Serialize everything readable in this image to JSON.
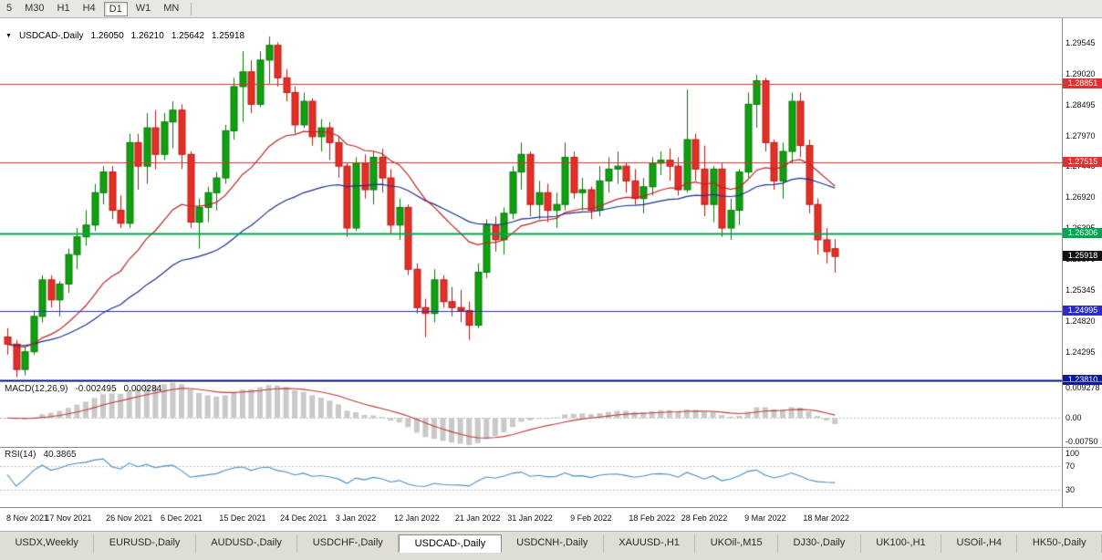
{
  "toolbar": {
    "timeframes": [
      {
        "label": "5",
        "active": false
      },
      {
        "label": "M30",
        "active": false
      },
      {
        "label": "H1",
        "active": false
      },
      {
        "label": "H4",
        "active": false
      },
      {
        "label": "D1",
        "active": true
      },
      {
        "label": "W1",
        "active": false
      },
      {
        "label": "MN",
        "active": false
      }
    ]
  },
  "chart_header": {
    "symbol": "USDCAD-,Daily",
    "open": "1.26050",
    "high": "1.26210",
    "low": "1.25642",
    "close": "1.25918"
  },
  "price_axis": {
    "top_price": 1.2996,
    "bottom_price": 1.238,
    "labels": [
      "1.29545",
      "1.29020",
      "1.28495",
      "1.27970",
      "1.27445",
      "1.26920",
      "1.26395",
      "1.25870",
      "1.25345",
      "1.24820",
      "1.24295"
    ]
  },
  "hlines": [
    {
      "price": 1.28851,
      "label": "1.28851",
      "color": "#e23030",
      "width": 1
    },
    {
      "price": 1.27515,
      "label": "1.27515",
      "color": "#e23030",
      "width": 1
    },
    {
      "price": 1.26306,
      "label": "1.26306",
      "color": "#00a651",
      "width": 2
    },
    {
      "price": 1.24995,
      "label": "1.24995",
      "color": "#2a2ad0",
      "width": 1
    },
    {
      "price": 1.2381,
      "label": "1.23810",
      "color": "#0a1b9e",
      "width": 2
    }
  ],
  "current_price": {
    "label": "1.25918",
    "value": 1.25918,
    "color": "#111111"
  },
  "chart_data": {
    "type": "candlestick",
    "title": "USDCAD-,Daily",
    "symbol": "USDCAD",
    "timeframe": "Daily",
    "ylim": [
      1.238,
      1.2996
    ],
    "colors": {
      "up": "#0fa00f",
      "up_border": "#087808",
      "down": "#e03028",
      "down_border": "#c01810",
      "ma_fast": "#c32222",
      "ma_slow": "#1c2f90"
    },
    "moving_averages": [
      {
        "name": "ema-20",
        "color": "#c32222"
      },
      {
        "name": "ema-45",
        "color": "#1c2f90"
      }
    ],
    "candles": [
      [
        1.2455,
        1.247,
        1.2425,
        1.2443
      ],
      [
        1.2443,
        1.245,
        1.2387,
        1.24
      ],
      [
        1.24,
        1.2438,
        1.239,
        1.243
      ],
      [
        1.243,
        1.25,
        1.2425,
        1.249
      ],
      [
        1.249,
        1.256,
        1.248,
        1.2552
      ],
      [
        1.2552,
        1.256,
        1.2505,
        1.2518
      ],
      [
        1.2518,
        1.255,
        1.249,
        1.2545
      ],
      [
        1.2545,
        1.2605,
        1.253,
        1.2595
      ],
      [
        1.2595,
        1.264,
        1.257,
        1.2625
      ],
      [
        1.2625,
        1.267,
        1.261,
        1.2645
      ],
      [
        1.2645,
        1.2715,
        1.2635,
        1.27
      ],
      [
        1.27,
        1.2745,
        1.268,
        1.2735
      ],
      [
        1.2735,
        1.2745,
        1.2655,
        1.267
      ],
      [
        1.267,
        1.2695,
        1.264,
        1.2648
      ],
      [
        1.2648,
        1.28,
        1.264,
        1.2785
      ],
      [
        1.2785,
        1.28,
        1.2705,
        1.2745
      ],
      [
        1.2745,
        1.2835,
        1.2715,
        1.281
      ],
      [
        1.281,
        1.284,
        1.274,
        1.2765
      ],
      [
        1.2765,
        1.2835,
        1.2755,
        1.282
      ],
      [
        1.282,
        1.2855,
        1.2775,
        1.284
      ],
      [
        1.284,
        1.285,
        1.274,
        1.2765
      ],
      [
        1.2765,
        1.277,
        1.264,
        1.265
      ],
      [
        1.265,
        1.269,
        1.2605,
        1.2675
      ],
      [
        1.2675,
        1.271,
        1.265,
        1.27
      ],
      [
        1.27,
        1.2735,
        1.267,
        1.2725
      ],
      [
        1.2725,
        1.2815,
        1.2715,
        1.2805
      ],
      [
        1.2805,
        1.2895,
        1.279,
        1.288
      ],
      [
        1.288,
        1.294,
        1.282,
        1.2905
      ],
      [
        1.2905,
        1.2925,
        1.2835,
        1.285
      ],
      [
        1.285,
        1.294,
        1.2845,
        1.2925
      ],
      [
        1.2925,
        1.2965,
        1.2885,
        1.295
      ],
      [
        1.295,
        1.2955,
        1.288,
        1.2895
      ],
      [
        1.2895,
        1.291,
        1.2855,
        1.287
      ],
      [
        1.287,
        1.288,
        1.28,
        1.2815
      ],
      [
        1.2815,
        1.287,
        1.281,
        1.2855
      ],
      [
        1.2855,
        1.286,
        1.278,
        1.2795
      ],
      [
        1.2795,
        1.2825,
        1.277,
        1.281
      ],
      [
        1.281,
        1.282,
        1.2755,
        1.2785
      ],
      [
        1.2785,
        1.2795,
        1.2725,
        1.2745
      ],
      [
        1.2745,
        1.275,
        1.2625,
        1.264
      ],
      [
        1.264,
        1.276,
        1.2635,
        1.275
      ],
      [
        1.275,
        1.2765,
        1.269,
        1.2705
      ],
      [
        1.2705,
        1.277,
        1.268,
        1.276
      ],
      [
        1.276,
        1.2775,
        1.27,
        1.2725
      ],
      [
        1.2725,
        1.274,
        1.263,
        1.2645
      ],
      [
        1.2645,
        1.269,
        1.262,
        1.2675
      ],
      [
        1.2675,
        1.268,
        1.256,
        1.257
      ],
      [
        1.257,
        1.258,
        1.2495,
        1.2505
      ],
      [
        1.2505,
        1.252,
        1.2455,
        1.2495
      ],
      [
        1.2495,
        1.257,
        1.248,
        1.2552
      ],
      [
        1.2552,
        1.256,
        1.2505,
        1.2515
      ],
      [
        1.2515,
        1.254,
        1.249,
        1.2505
      ],
      [
        1.2505,
        1.2535,
        1.248,
        1.25
      ],
      [
        1.25,
        1.2515,
        1.245,
        1.2475
      ],
      [
        1.2475,
        1.258,
        1.247,
        1.2565
      ],
      [
        1.2565,
        1.2655,
        1.2555,
        1.2645
      ],
      [
        1.2645,
        1.266,
        1.26,
        1.262
      ],
      [
        1.262,
        1.2675,
        1.2595,
        1.2665
      ],
      [
        1.2665,
        1.2745,
        1.2655,
        1.2735
      ],
      [
        1.2735,
        1.2785,
        1.2705,
        1.2765
      ],
      [
        1.2765,
        1.277,
        1.266,
        1.268
      ],
      [
        1.268,
        1.272,
        1.2655,
        1.27
      ],
      [
        1.27,
        1.2715,
        1.265,
        1.267
      ],
      [
        1.267,
        1.27,
        1.264,
        1.268
      ],
      [
        1.268,
        1.2785,
        1.267,
        1.276
      ],
      [
        1.276,
        1.277,
        1.269,
        1.27
      ],
      [
        1.27,
        1.2725,
        1.267,
        1.2705
      ],
      [
        1.2705,
        1.271,
        1.2655,
        1.267
      ],
      [
        1.267,
        1.2745,
        1.266,
        1.272
      ],
      [
        1.272,
        1.276,
        1.27,
        1.274
      ],
      [
        1.274,
        1.277,
        1.2715,
        1.2745
      ],
      [
        1.2745,
        1.275,
        1.27,
        1.272
      ],
      [
        1.272,
        1.274,
        1.268,
        1.269
      ],
      [
        1.269,
        1.2725,
        1.2665,
        1.271
      ],
      [
        1.271,
        1.276,
        1.2695,
        1.275
      ],
      [
        1.275,
        1.277,
        1.273,
        1.2755
      ],
      [
        1.2755,
        1.2775,
        1.272,
        1.2745
      ],
      [
        1.2745,
        1.276,
        1.2695,
        1.2705
      ],
      [
        1.2705,
        1.2875,
        1.27,
        1.279
      ],
      [
        1.279,
        1.28,
        1.272,
        1.274
      ],
      [
        1.274,
        1.278,
        1.266,
        1.268
      ],
      [
        1.268,
        1.2745,
        1.265,
        1.274
      ],
      [
        1.274,
        1.275,
        1.2625,
        1.264
      ],
      [
        1.264,
        1.269,
        1.262,
        1.267
      ],
      [
        1.267,
        1.274,
        1.2645,
        1.2735
      ],
      [
        1.2735,
        1.287,
        1.2725,
        1.285
      ],
      [
        1.285,
        1.29,
        1.281,
        1.289
      ],
      [
        1.289,
        1.2895,
        1.277,
        1.2785
      ],
      [
        1.2785,
        1.279,
        1.2705,
        1.272
      ],
      [
        1.272,
        1.2785,
        1.269,
        1.277
      ],
      [
        1.277,
        1.287,
        1.275,
        1.2855
      ],
      [
        1.2855,
        1.287,
        1.276,
        1.278
      ],
      [
        1.278,
        1.279,
        1.2665,
        1.268
      ],
      [
        1.268,
        1.269,
        1.2595,
        1.262
      ],
      [
        1.262,
        1.264,
        1.258,
        1.26
      ],
      [
        1.2605,
        1.2621,
        1.25642,
        1.25918
      ]
    ],
    "date_ticks": [
      {
        "i": 0,
        "label": "8 Nov 2021"
      },
      {
        "i": 7,
        "label": "17 Nov 2021"
      },
      {
        "i": 14,
        "label": "26 Nov 2021"
      },
      {
        "i": 20,
        "label": "6 Dec 2021"
      },
      {
        "i": 27,
        "label": "15 Dec 2021"
      },
      {
        "i": 34,
        "label": "24 Dec 2021"
      },
      {
        "i": 40,
        "label": "3 Jan 2022"
      },
      {
        "i": 47,
        "label": "12 Jan 2022"
      },
      {
        "i": 54,
        "label": "21 Jan 2022"
      },
      {
        "i": 60,
        "label": "31 Jan 2022"
      },
      {
        "i": 67,
        "label": "9 Feb 2022"
      },
      {
        "i": 74,
        "label": "18 Feb 2022"
      },
      {
        "i": 80,
        "label": "28 Feb 2022"
      },
      {
        "i": 87,
        "label": "9 Mar 2022"
      },
      {
        "i": 94,
        "label": "18 Mar 2022"
      }
    ]
  },
  "macd": {
    "name": "MACD(12,26,9)",
    "value_main": "-0.002495",
    "value_signal": "0.000284",
    "axis_max": "0.009278",
    "axis_zero": "0.00",
    "axis_min": "-0.00750",
    "params": {
      "fast": 12,
      "slow": 26,
      "signal": 9
    },
    "range": [
      -0.0075,
      0.009278
    ],
    "colors": {
      "histogram": "#c9c9c9",
      "signal": "#c03a3a"
    }
  },
  "rsi": {
    "name": "RSI(14)",
    "value": "40.3865",
    "period": 14,
    "axis": [
      "100",
      "70",
      "30"
    ],
    "levels": [
      70,
      30
    ],
    "range": [
      0,
      100
    ],
    "color": "#4a8fc7"
  },
  "tabs": [
    {
      "label": "USDX,Weekly",
      "active": false
    },
    {
      "label": "EURUSD-,Daily",
      "active": false
    },
    {
      "label": "AUDUSD-,Daily",
      "active": false
    },
    {
      "label": "USDCHF-,Daily",
      "active": false
    },
    {
      "label": "USDCAD-,Daily",
      "active": true
    },
    {
      "label": "USDCNH-,Daily",
      "active": false
    },
    {
      "label": "XAUUSD-,H1",
      "active": false
    },
    {
      "label": "UKOil-,M15",
      "active": false
    },
    {
      "label": "DJ30-,Daily",
      "active": false
    },
    {
      "label": "UK100-,H1",
      "active": false
    },
    {
      "label": "USOil-,H4",
      "active": false
    },
    {
      "label": "HK50-,Daily",
      "active": false
    }
  ]
}
